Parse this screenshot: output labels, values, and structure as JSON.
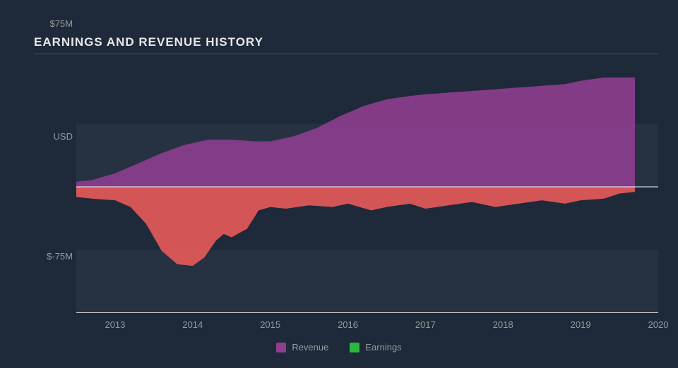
{
  "chart": {
    "type": "area",
    "title": "EARNINGS AND REVENUE HISTORY",
    "background_color": "#1e2a3a",
    "band_color": "#263241",
    "band_alt_color": "#1e2a3a",
    "axis_line_color": "#cccccc",
    "zero_line_color": "#ffffff",
    "grid_line_color": "#4a5562",
    "text_color": "#999999",
    "title_color": "#e8e8e8",
    "title_fontsize": 17,
    "label_fontsize": 13,
    "y_axis": {
      "label": "USD",
      "min": -75,
      "max": 75,
      "ticks": [
        {
          "value": 75,
          "label": "$75M"
        },
        {
          "value": 0,
          "label": "USD"
        },
        {
          "value": -75,
          "label": "$-75M"
        }
      ]
    },
    "x_axis": {
      "min": 2012.5,
      "max": 2020,
      "ticks": [
        2013,
        2014,
        2015,
        2016,
        2017,
        2018,
        2019,
        2020
      ]
    },
    "series": [
      {
        "name": "Revenue",
        "color": "#8e3d8f",
        "fill_opacity": 0.9,
        "points": [
          [
            2012.5,
            3
          ],
          [
            2012.7,
            4
          ],
          [
            2013.0,
            8
          ],
          [
            2013.3,
            14
          ],
          [
            2013.6,
            20
          ],
          [
            2013.9,
            25
          ],
          [
            2014.2,
            28
          ],
          [
            2014.5,
            28
          ],
          [
            2014.8,
            27
          ],
          [
            2015.0,
            27
          ],
          [
            2015.3,
            30
          ],
          [
            2015.6,
            35
          ],
          [
            2015.9,
            42
          ],
          [
            2016.2,
            48
          ],
          [
            2016.5,
            52
          ],
          [
            2016.8,
            54
          ],
          [
            2017.0,
            55
          ],
          [
            2017.3,
            56
          ],
          [
            2017.6,
            57
          ],
          [
            2017.9,
            58
          ],
          [
            2018.2,
            59
          ],
          [
            2018.5,
            60
          ],
          [
            2018.8,
            61
          ],
          [
            2019.0,
            63
          ],
          [
            2019.3,
            65
          ],
          [
            2019.5,
            65
          ],
          [
            2019.7,
            65
          ]
        ]
      },
      {
        "name": "Earnings",
        "color": "#2db83d",
        "legend_color": "#2db83d",
        "negative_fill_color": "#e85a5a",
        "fill_opacity": 0.9,
        "points": [
          [
            2012.5,
            -6
          ],
          [
            2012.7,
            -7
          ],
          [
            2013.0,
            -8
          ],
          [
            2013.2,
            -12
          ],
          [
            2013.4,
            -22
          ],
          [
            2013.6,
            -38
          ],
          [
            2013.8,
            -46
          ],
          [
            2014.0,
            -47
          ],
          [
            2014.15,
            -42
          ],
          [
            2014.3,
            -32
          ],
          [
            2014.4,
            -28
          ],
          [
            2014.5,
            -30
          ],
          [
            2014.7,
            -25
          ],
          [
            2014.85,
            -14
          ],
          [
            2015.0,
            -12
          ],
          [
            2015.2,
            -13
          ],
          [
            2015.5,
            -11
          ],
          [
            2015.8,
            -12
          ],
          [
            2016.0,
            -10
          ],
          [
            2016.3,
            -14
          ],
          [
            2016.5,
            -12
          ],
          [
            2016.8,
            -10
          ],
          [
            2017.0,
            -13
          ],
          [
            2017.3,
            -11
          ],
          [
            2017.6,
            -9
          ],
          [
            2017.9,
            -12
          ],
          [
            2018.2,
            -10
          ],
          [
            2018.5,
            -8
          ],
          [
            2018.8,
            -10
          ],
          [
            2019.0,
            -8
          ],
          [
            2019.3,
            -7
          ],
          [
            2019.5,
            -4
          ],
          [
            2019.7,
            -3
          ]
        ]
      }
    ],
    "legend": {
      "items": [
        {
          "label": "Revenue",
          "color": "#8e3d8f"
        },
        {
          "label": "Earnings",
          "color": "#2db83d"
        }
      ]
    }
  }
}
